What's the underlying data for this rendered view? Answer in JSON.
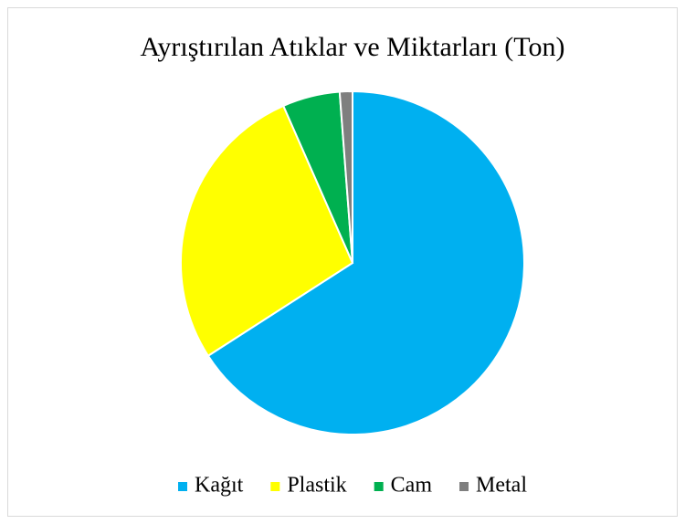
{
  "chart_data": {
    "type": "pie",
    "title": "Ayrıştırılan Atıklar ve Miktarları (Ton)",
    "categories": [
      "Kağıt",
      "Plastik",
      "Cam",
      "Metal"
    ],
    "values": [
      65.9,
      27.5,
      5.4,
      1.2
    ],
    "colors": [
      "#00b0f0",
      "#ffff00",
      "#00b050",
      "#7f7f7f"
    ],
    "legend": "bottom"
  }
}
